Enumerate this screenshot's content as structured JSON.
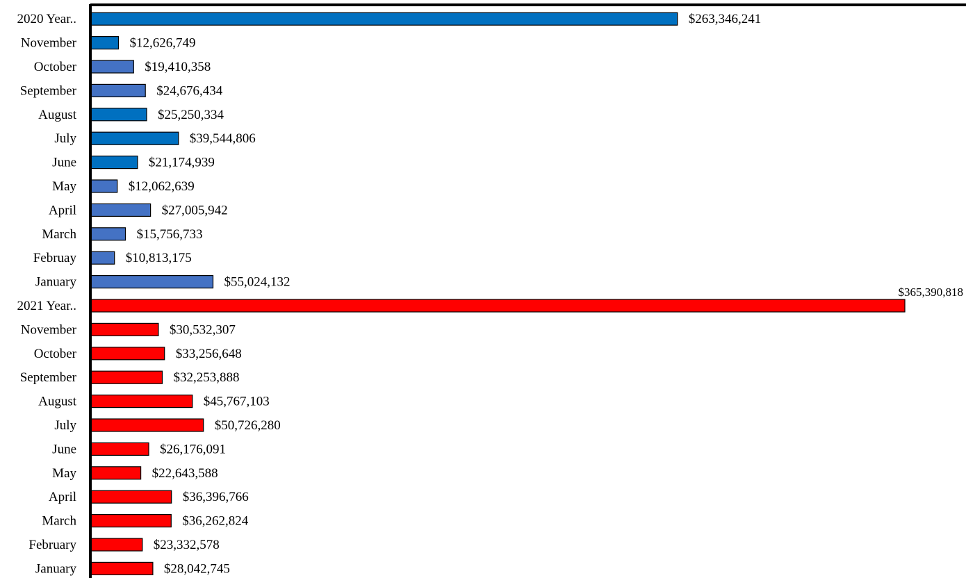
{
  "chart_data": {
    "type": "bar",
    "orientation": "horizontal",
    "title": "",
    "xlabel": "",
    "ylabel": "",
    "grid": false,
    "legend": "none",
    "xlim": [
      0,
      365390818
    ],
    "colors": {
      "total_2020": "#0070c0",
      "month_2020_light": "#4472c4",
      "month_2020_dark": "#0070c0",
      "year_2021": "#ff0000",
      "bar_outline": "#000000",
      "axis": "#000000"
    },
    "categories": [
      {
        "label": "2020 Year..",
        "value": 263346241,
        "value_label": "$263,346,241",
        "color": "#0070c0"
      },
      {
        "label": "November",
        "value": 12626749,
        "value_label": "$12,626,749",
        "color": "#0070c0"
      },
      {
        "label": "October",
        "value": 19410358,
        "value_label": "$19,410,358",
        "color": "#4472c4"
      },
      {
        "label": "September",
        "value": 24676434,
        "value_label": "$24,676,434",
        "color": "#4472c4"
      },
      {
        "label": "August",
        "value": 25250334,
        "value_label": "$25,250,334",
        "color": "#0070c0"
      },
      {
        "label": "July",
        "value": 39544806,
        "value_label": "$39,544,806",
        "color": "#0070c0"
      },
      {
        "label": "June",
        "value": 21174939,
        "value_label": "$21,174,939",
        "color": "#0070c0"
      },
      {
        "label": "May",
        "value": 12062639,
        "value_label": "$12,062,639",
        "color": "#4472c4"
      },
      {
        "label": "April",
        "value": 27005942,
        "value_label": "$27,005,942",
        "color": "#4472c4"
      },
      {
        "label": "March",
        "value": 15756733,
        "value_label": "$15,756,733",
        "color": "#4472c4"
      },
      {
        "label": "Februay",
        "value": 10813175,
        "value_label": "$10,813,175",
        "color": "#4472c4"
      },
      {
        "label": "January",
        "value": 55024132,
        "value_label": "$55,024,132",
        "color": "#4472c4"
      },
      {
        "label": "2021 Year..",
        "value": 365390818,
        "value_label": "$365,390,818",
        "color": "#ff0000"
      },
      {
        "label": "November",
        "value": 30532307,
        "value_label": "$30,532,307",
        "color": "#ff0000"
      },
      {
        "label": "October",
        "value": 33256648,
        "value_label": "$33,256,648",
        "color": "#ff0000"
      },
      {
        "label": "September",
        "value": 32253888,
        "value_label": "$32,253,888",
        "color": "#ff0000"
      },
      {
        "label": "August",
        "value": 45767103,
        "value_label": "$45,767,103",
        "color": "#ff0000"
      },
      {
        "label": "July",
        "value": 50726280,
        "value_label": "$50,726,280",
        "color": "#ff0000"
      },
      {
        "label": "June",
        "value": 26176091,
        "value_label": "$26,176,091",
        "color": "#ff0000"
      },
      {
        "label": "May",
        "value": 22643588,
        "value_label": "$22,643,588",
        "color": "#ff0000"
      },
      {
        "label": "April",
        "value": 36396766,
        "value_label": "$36,396,766",
        "color": "#ff0000"
      },
      {
        "label": "March",
        "value": 36262824,
        "value_label": "$36,262,824",
        "color": "#ff0000"
      },
      {
        "label": "February",
        "value": 23332578,
        "value_label": "$23,332,578",
        "color": "#ff0000"
      },
      {
        "label": "January",
        "value": 28042745,
        "value_label": "$28,042,745",
        "color": "#ff0000"
      }
    ]
  }
}
